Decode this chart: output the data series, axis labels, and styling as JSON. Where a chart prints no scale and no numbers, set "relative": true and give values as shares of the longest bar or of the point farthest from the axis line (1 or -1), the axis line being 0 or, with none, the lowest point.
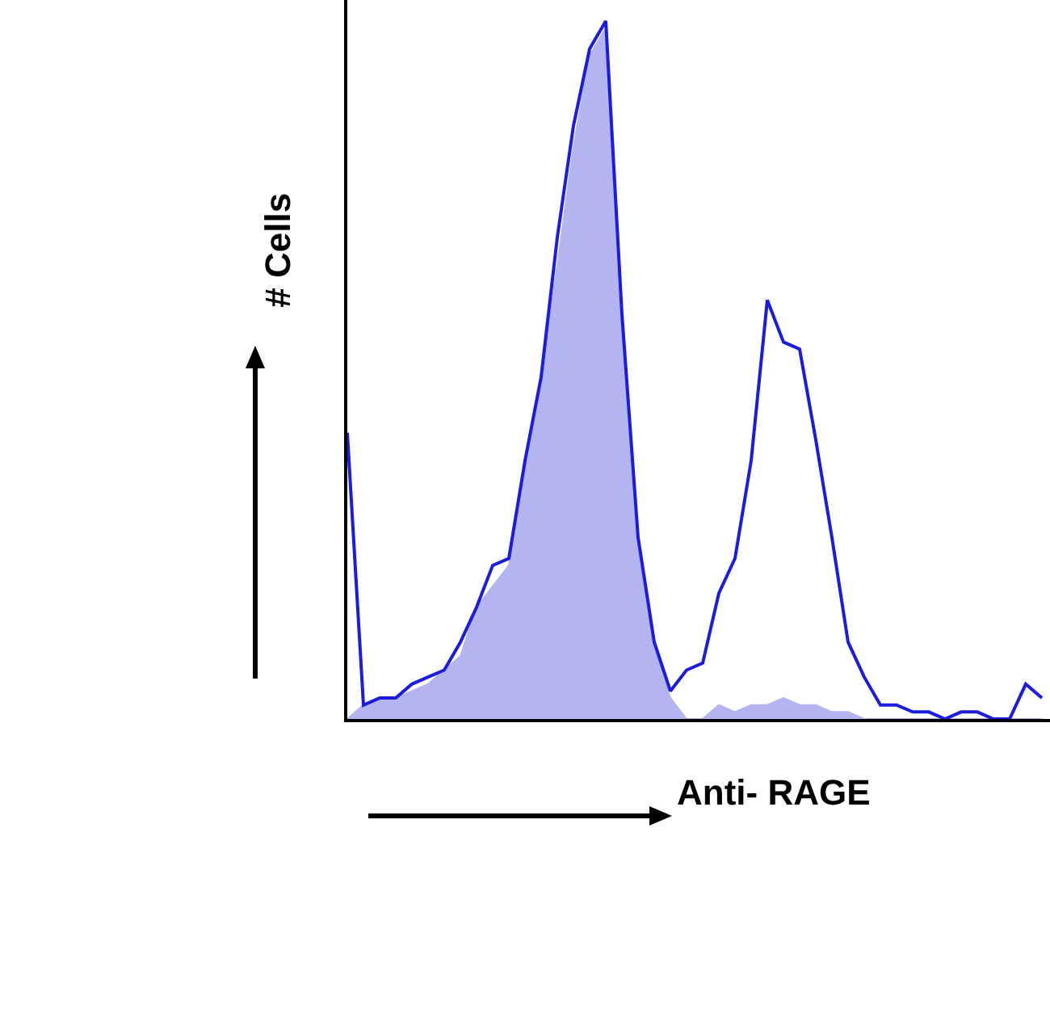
{
  "chart_data": {
    "type": "area",
    "relative": true,
    "xlabel": "Anti- RAGE",
    "ylabel": "# Cells",
    "tick_labels": false,
    "categories": [
      null,
      null,
      null,
      null,
      null,
      null,
      null,
      null,
      null,
      null,
      null,
      null,
      null,
      null,
      null,
      null,
      null,
      null,
      null,
      null,
      null,
      null,
      null,
      null,
      null,
      null,
      null,
      null,
      null,
      null,
      null,
      null,
      null,
      null,
      null,
      null,
      null,
      null,
      null,
      null,
      null,
      null,
      null,
      null
    ],
    "series": [
      {
        "type": "area",
        "color": "#b4b4f0",
        "values": [
          0.0,
          0.02,
          0.03,
          0.03,
          0.04,
          0.05,
          0.07,
          0.09,
          0.16,
          0.19,
          0.22,
          0.37,
          0.49,
          0.65,
          0.82,
          0.95,
          0.99,
          0.58,
          0.26,
          0.1,
          0.03,
          0.0,
          0.0,
          0.02,
          0.01,
          0.02,
          0.02,
          0.03,
          0.02,
          0.02,
          0.01,
          0.01,
          0.0,
          0.0,
          0.0,
          0.0,
          0.0,
          0.0,
          0.0,
          0.0,
          0.0,
          0.0,
          0.0,
          0.0
        ]
      },
      {
        "type": "line",
        "color": "#1c1ce0",
        "values": [
          0.41,
          0.02,
          0.03,
          0.03,
          0.05,
          0.06,
          0.07,
          0.11,
          0.16,
          0.22,
          0.23,
          0.37,
          0.49,
          0.69,
          0.85,
          0.96,
          1.0,
          0.58,
          0.26,
          0.11,
          0.04,
          0.07,
          0.08,
          0.18,
          0.23,
          0.37,
          0.6,
          0.54,
          0.53,
          0.4,
          0.26,
          0.11,
          0.06,
          0.02,
          0.02,
          0.01,
          0.01,
          0.0,
          0.01,
          0.01,
          0.0,
          0.0,
          0.05,
          0.03
        ]
      }
    ]
  }
}
